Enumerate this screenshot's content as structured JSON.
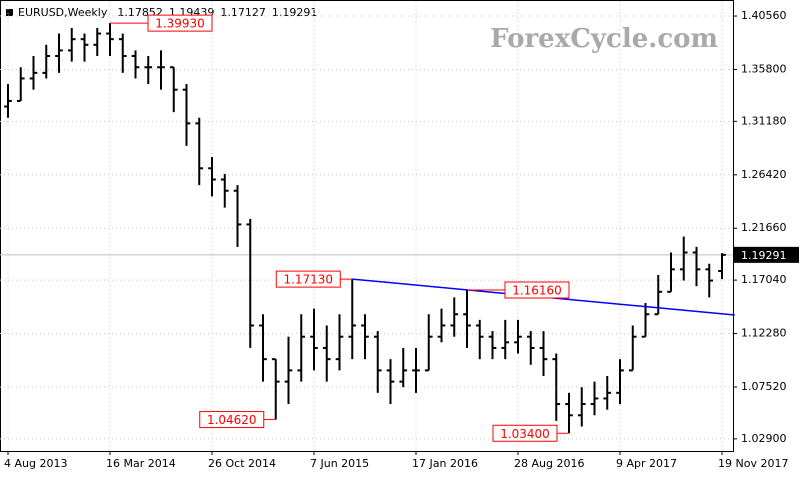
{
  "chart_data": {
    "type": "ohlc",
    "title": "EURUSD,Weekly",
    "watermark": "ForexCycle.com",
    "color": "#000000",
    "categories": [
      "4 Aug 2013",
      null,
      null,
      null,
      null,
      null,
      null,
      null,
      "16 Mar 2014",
      null,
      null,
      null,
      null,
      null,
      null,
      null,
      "26 Oct 2014",
      null,
      null,
      null,
      null,
      null,
      null,
      null,
      "7 Jun 2015",
      null,
      null,
      null,
      null,
      null,
      null,
      null,
      "17 Jan 2016",
      null,
      null,
      null,
      null,
      null,
      null,
      null,
      "28 Aug 2016",
      null,
      null,
      null,
      null,
      null,
      null,
      null,
      "9 Apr 2017",
      null,
      null,
      null,
      null,
      null,
      null,
      null,
      "19 Nov 2017"
    ],
    "open": [
      1.325,
      1.33,
      1.35,
      1.355,
      1.37,
      1.375,
      1.385,
      1.38,
      1.39,
      1.385,
      1.37,
      1.36,
      1.36,
      1.36,
      1.34,
      1.31,
      1.27,
      1.26,
      1.25,
      1.22,
      1.13,
      1.1,
      1.08,
      1.09,
      1.12,
      1.11,
      1.1,
      1.12,
      1.13,
      1.12,
      1.09,
      1.08,
      1.09,
      1.09,
      1.12,
      1.13,
      1.14,
      1.13,
      1.12,
      1.11,
      1.115,
      1.12,
      1.11,
      1.1,
      1.06,
      1.05,
      1.06,
      1.065,
      1.07,
      1.09,
      1.12,
      1.14,
      1.16,
      1.18,
      1.195,
      1.18,
      1.17852
    ],
    "high": [
      1.345,
      1.36,
      1.37,
      1.38,
      1.39,
      1.395,
      1.39,
      1.395,
      1.3993,
      1.39,
      1.375,
      1.37,
      1.375,
      1.36,
      1.345,
      1.315,
      1.28,
      1.265,
      1.255,
      1.225,
      1.14,
      1.1,
      1.12,
      1.14,
      1.145,
      1.13,
      1.14,
      1.1713,
      1.14,
      1.125,
      1.1,
      1.11,
      1.11,
      1.14,
      1.145,
      1.155,
      1.1616,
      1.135,
      1.125,
      1.135,
      1.135,
      1.125,
      1.125,
      1.105,
      1.07,
      1.075,
      1.08,
      1.085,
      1.1,
      1.13,
      1.15,
      1.175,
      1.195,
      1.2092,
      1.2,
      1.185,
      1.19439
    ],
    "low": [
      1.315,
      1.33,
      1.34,
      1.35,
      1.355,
      1.365,
      1.365,
      1.37,
      1.37,
      1.355,
      1.35,
      1.345,
      1.34,
      1.32,
      1.29,
      1.255,
      1.245,
      1.235,
      1.2,
      1.11,
      1.08,
      1.0462,
      1.06,
      1.08,
      1.09,
      1.08,
      1.09,
      1.1,
      1.1,
      1.07,
      1.06,
      1.075,
      1.07,
      1.09,
      1.115,
      1.12,
      1.11,
      1.1,
      1.1,
      1.1,
      1.105,
      1.095,
      1.085,
      1.045,
      1.034,
      1.04,
      1.05,
      1.055,
      1.06,
      1.09,
      1.12,
      1.14,
      1.16,
      1.17,
      1.165,
      1.155,
      1.17127
    ],
    "close": [
      1.33,
      1.35,
      1.355,
      1.37,
      1.375,
      1.385,
      1.38,
      1.39,
      1.385,
      1.37,
      1.36,
      1.36,
      1.36,
      1.34,
      1.31,
      1.27,
      1.26,
      1.25,
      1.22,
      1.13,
      1.1,
      1.08,
      1.09,
      1.12,
      1.11,
      1.1,
      1.12,
      1.13,
      1.12,
      1.09,
      1.08,
      1.09,
      1.09,
      1.12,
      1.13,
      1.14,
      1.13,
      1.12,
      1.11,
      1.115,
      1.12,
      1.11,
      1.1,
      1.06,
      1.05,
      1.06,
      1.065,
      1.07,
      1.09,
      1.12,
      1.14,
      1.16,
      1.18,
      1.195,
      1.18,
      1.17,
      1.19291
    ],
    "ylim": [
      1.0182,
      1.419
    ],
    "yticks": [
      {
        "value": 1.4056,
        "label": "1.40560"
      },
      {
        "value": 1.358,
        "label": "1.35800"
      },
      {
        "value": 1.3118,
        "label": "1.31180"
      },
      {
        "value": 1.2642,
        "label": "1.26420"
      },
      {
        "value": 1.2166,
        "label": "1.21660"
      },
      {
        "value": 1.1704,
        "label": "1.17040"
      },
      {
        "value": 1.1228,
        "label": "1.12280"
      },
      {
        "value": 1.0752,
        "label": "1.07520"
      },
      {
        "value": 1.029,
        "label": "1.02900"
      }
    ],
    "grid": true,
    "last_price_line_color": "#c0c0c0",
    "trendline": {
      "color": "#0000ff",
      "x": [
        27,
        57
      ],
      "values": [
        1.1713,
        1.1393
      ]
    },
    "annotation_color": "#ff0000",
    "annotations": [
      {
        "label": "1.39930",
        "value": 1.3993,
        "x": 8,
        "placement": "right"
      },
      {
        "label": "1.04620",
        "value": 1.0462,
        "x": 21,
        "placement": "left"
      },
      {
        "label": "1.17130",
        "value": 1.1713,
        "x": 27,
        "placement": "left"
      },
      {
        "label": "1.16160",
        "value": 1.1616,
        "x": 36,
        "placement": "right"
      },
      {
        "label": "1.03400",
        "value": 1.034,
        "x": 44,
        "placement": "left"
      }
    ]
  }
}
